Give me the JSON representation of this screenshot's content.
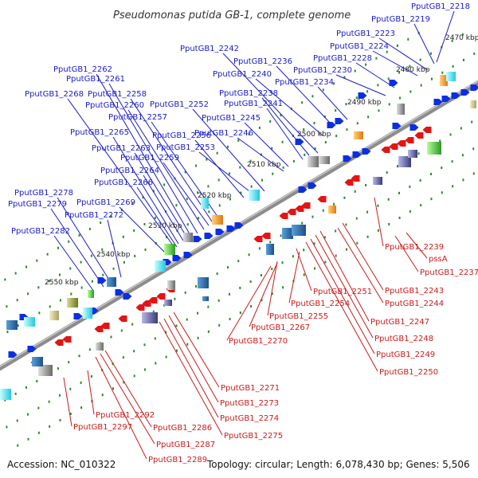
{
  "title": "Pseudomonas putida GB-1, complete genome",
  "accession": "Accession: NC_010322",
  "summary": "Topology: circular; Length: 6,078,430 bp; Genes: 5,506",
  "colors": {
    "forward_label": "#1a1acc",
    "reverse_label": "#cc1a1a",
    "forward_gene": "#0b2fe0",
    "reverse_gene": "#e41414",
    "backbone": "#8c8c8c",
    "tick": "#2a8a2a"
  },
  "scale_labels": [
    "2470 kbp",
    "2480 kbp",
    "2490 kbp",
    "2500 kbp",
    "2510 kbp",
    "2520 kbp",
    "2530 kbp",
    "2540 kbp",
    "2550 kbp"
  ],
  "forward_labels": [
    "PputGB1_2218",
    "PputGB1_2219",
    "PputGB1_2223",
    "PputGB1_2224",
    "PputGB1_2228",
    "PputGB1_2230",
    "PputGB1_2234",
    "PputGB1_2236",
    "PputGB1_2240",
    "PputGB1_2242",
    "PputGB1_2238",
    "PputGB1_2241",
    "PputGB1_2245",
    "PputGB1_2246",
    "PputGB1_2252",
    "PputGB1_2253",
    "PputGB1_2256",
    "PputGB1_2257",
    "PputGB1_2258",
    "PputGB1_2259",
    "PputGB1_2260",
    "PputGB1_2261",
    "PputGB1_2262",
    "PputGB1_2263",
    "PputGB1_2264",
    "PputGB1_2265",
    "PputGB1_2266",
    "PputGB1_2268",
    "PputGB1_2269",
    "PputGB1_2272",
    "PputGB1_2278",
    "PputGB1_2279",
    "PputGB1_2282"
  ],
  "reverse_labels": [
    "PputGB1_2239",
    "pssA",
    "PputGB1_2237",
    "PputGB1_2243",
    "PputGB1_2244",
    "PputGB1_2247",
    "PputGB1_2248",
    "PputGB1_2249",
    "PputGB1_2250",
    "PputGB1_2251",
    "PputGB1_2254",
    "PputGB1_2255",
    "PputGB1_2267",
    "PputGB1_2270",
    "PputGB1_2271",
    "PputGB1_2273",
    "PputGB1_2274",
    "PputGB1_2275",
    "PputGB1_2286",
    "PputGB1_2287",
    "PputGB1_2289",
    "PputGB1_2292",
    "PputGB1_2297"
  ]
}
